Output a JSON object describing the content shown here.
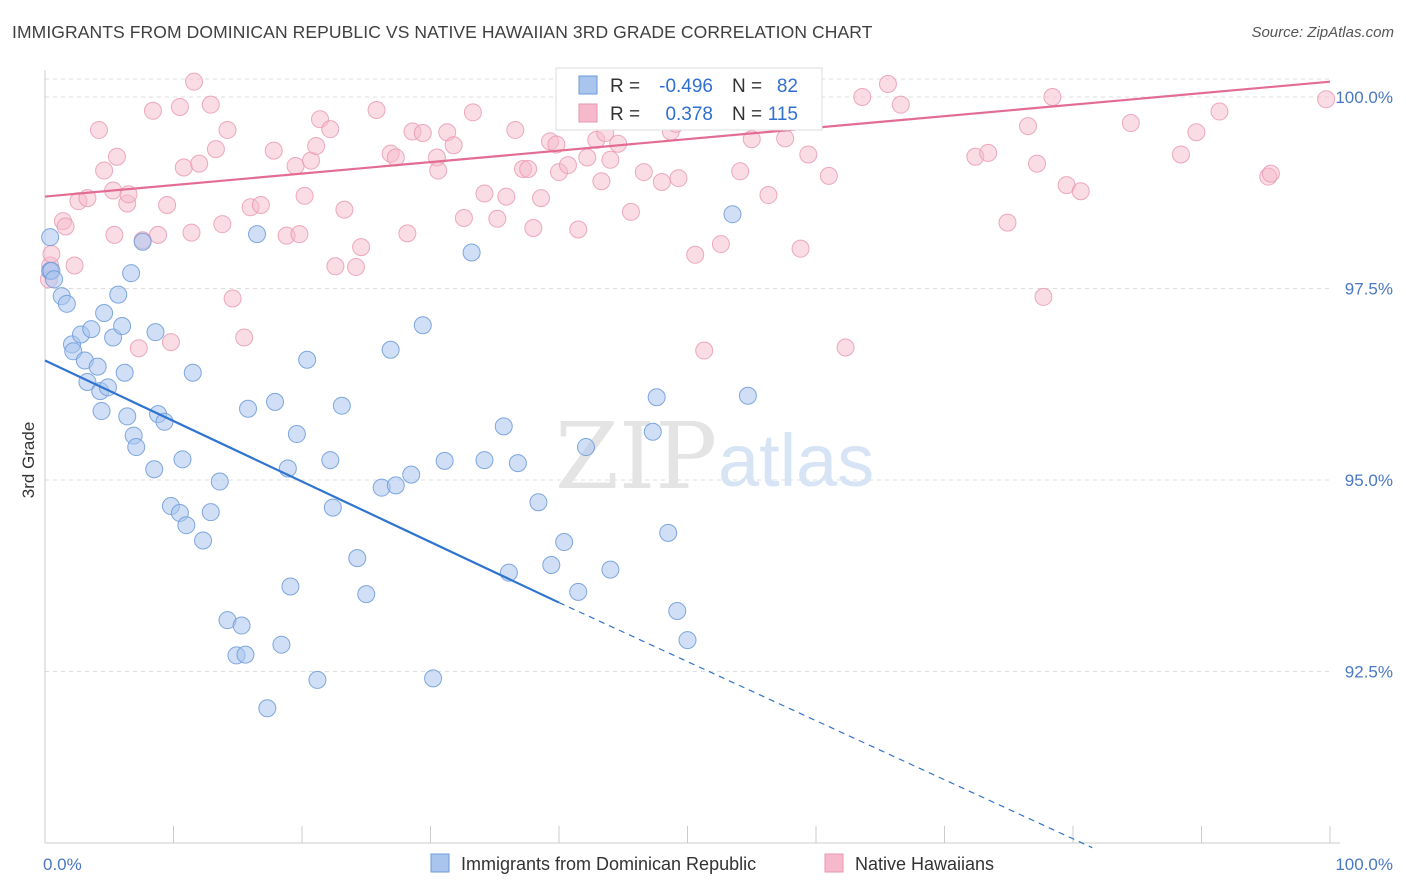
{
  "title": "IMMIGRANTS FROM DOMINICAN REPUBLIC VS NATIVE HAWAIIAN 3RD GRADE CORRELATION CHART",
  "source": "Source: ZipAtlas.com",
  "watermark": {
    "zip": "ZIP",
    "atlas": "atlas"
  },
  "legend": {
    "r_label": "R =",
    "n_label": "N =",
    "series": [
      {
        "r": "-0.496",
        "n": "82"
      },
      {
        "r": "0.378",
        "n": "115"
      }
    ]
  },
  "bottom_legend": [
    "Immigrants from Dominican Republic",
    "Native Hawaiians"
  ],
  "colors": {
    "blue_fill": "#a9c5ee",
    "blue_stroke": "#6b9ad8",
    "blue_line": "#2f74d0",
    "pink_fill": "#f6b9cb",
    "pink_stroke": "#e896b0",
    "pink_line": "#e36c93",
    "grid": "#dddddd",
    "tick_label": "#4a78c2"
  },
  "chart_data": {
    "type": "scatter",
    "title": "IMMIGRANTS FROM DOMINICAN REPUBLIC VS NATIVE HAWAIIAN 3RD GRADE CORRELATION CHART",
    "xlabel": "",
    "ylabel": "3rd Grade",
    "xlim": [
      0,
      100
    ],
    "ylim": [
      90.5,
      100.5
    ],
    "x_tick_labels": [
      {
        "value": 0,
        "label": "0.0%"
      },
      {
        "value": 100,
        "label": "100.0%"
      }
    ],
    "y_ticks": [
      {
        "value": 92.5,
        "label": "92.5%"
      },
      {
        "value": 95.0,
        "label": "95.0%"
      },
      {
        "value": 97.5,
        "label": "97.5%"
      },
      {
        "value": 100.0,
        "label": "100.0%"
      }
    ],
    "grid": true,
    "legend_position": "top-center",
    "series": [
      {
        "name": "Immigrants from Dominican Republic",
        "color": "#a9c5ee",
        "r": -0.496,
        "n": 82,
        "trend": {
          "x0": 0,
          "y0": 96.56,
          "x1": 40,
          "y1": 93.4,
          "dashed_to_x": 81.5,
          "dashed_y1": 90.2
        },
        "points": [
          [
            0.4,
            98.17
          ],
          [
            0.4,
            97.73
          ],
          [
            0.5,
            97.73
          ],
          [
            0.7,
            97.62
          ],
          [
            1.3,
            97.4
          ],
          [
            1.7,
            97.3
          ],
          [
            2.1,
            96.77
          ],
          [
            2.2,
            96.68
          ],
          [
            2.8,
            96.9
          ],
          [
            3.1,
            96.56
          ],
          [
            3.3,
            96.28
          ],
          [
            3.6,
            96.97
          ],
          [
            4.1,
            96.48
          ],
          [
            4.3,
            96.16
          ],
          [
            4.4,
            95.9
          ],
          [
            4.6,
            97.18
          ],
          [
            4.9,
            96.21
          ],
          [
            5.3,
            96.86
          ],
          [
            5.7,
            97.42
          ],
          [
            6,
            97.01
          ],
          [
            6.2,
            96.4
          ],
          [
            6.4,
            95.83
          ],
          [
            6.7,
            97.7
          ],
          [
            6.9,
            95.58
          ],
          [
            7.1,
            95.43
          ],
          [
            7.6,
            98.11
          ],
          [
            8.5,
            95.14
          ],
          [
            8.6,
            96.93
          ],
          [
            8.8,
            95.86
          ],
          [
            9.3,
            95.76
          ],
          [
            9.8,
            94.66
          ],
          [
            10.5,
            94.57
          ],
          [
            10.7,
            95.27
          ],
          [
            11,
            94.41
          ],
          [
            11.5,
            96.4
          ],
          [
            12.3,
            94.21
          ],
          [
            12.9,
            94.58
          ],
          [
            13.6,
            94.98
          ],
          [
            14.2,
            93.17
          ],
          [
            14.9,
            92.71
          ],
          [
            15.3,
            93.1
          ],
          [
            15.6,
            92.72
          ],
          [
            15.8,
            95.93
          ],
          [
            16.5,
            98.21
          ],
          [
            17.3,
            92.02
          ],
          [
            17.9,
            96.02
          ],
          [
            18.4,
            92.85
          ],
          [
            18.9,
            95.15
          ],
          [
            19.1,
            93.61
          ],
          [
            19.6,
            95.6
          ],
          [
            20.4,
            96.57
          ],
          [
            21.2,
            92.39
          ],
          [
            22.2,
            95.26
          ],
          [
            22.4,
            94.64
          ],
          [
            23.1,
            95.97
          ],
          [
            24.3,
            93.98
          ],
          [
            25,
            93.51
          ],
          [
            26.2,
            94.9
          ],
          [
            26.9,
            96.7
          ],
          [
            27.3,
            94.93
          ],
          [
            28.5,
            95.07
          ],
          [
            29.4,
            97.02
          ],
          [
            30.2,
            92.41
          ],
          [
            31.1,
            95.25
          ],
          [
            33.2,
            97.97
          ],
          [
            34.2,
            95.26
          ],
          [
            35.7,
            95.7
          ],
          [
            36.1,
            93.79
          ],
          [
            36.8,
            95.22
          ],
          [
            38.4,
            94.71
          ],
          [
            39.4,
            93.89
          ],
          [
            40.4,
            94.19
          ],
          [
            41.5,
            93.54
          ],
          [
            42.1,
            95.43
          ],
          [
            44,
            93.83
          ],
          [
            47.3,
            95.63
          ],
          [
            47.6,
            96.08
          ],
          [
            48.5,
            94.31
          ],
          [
            49.2,
            93.29
          ],
          [
            50,
            92.91
          ],
          [
            53.5,
            98.47
          ],
          [
            54.7,
            96.1
          ]
        ]
      },
      {
        "name": "Native Hawaiians",
        "color": "#f6b9cb",
        "r": 0.378,
        "n": 115,
        "trend": {
          "x0": 0,
          "y0": 98.7,
          "x1": 100,
          "y1": 100.2
        },
        "points": [
          [
            0.3,
            97.62
          ],
          [
            0.4,
            97.8
          ],
          [
            0.5,
            97.95
          ],
          [
            1.4,
            98.38
          ],
          [
            1.6,
            98.31
          ],
          [
            2.3,
            97.8
          ],
          [
            2.6,
            98.64
          ],
          [
            3.3,
            98.68
          ],
          [
            4.2,
            99.57
          ],
          [
            4.6,
            99.04
          ],
          [
            5.3,
            98.78
          ],
          [
            5.4,
            98.2
          ],
          [
            5.6,
            99.22
          ],
          [
            6.4,
            98.61
          ],
          [
            6.5,
            98.73
          ],
          [
            7.3,
            96.72
          ],
          [
            7.6,
            98.13
          ],
          [
            8.4,
            99.82
          ],
          [
            8.8,
            98.2
          ],
          [
            9.5,
            98.59
          ],
          [
            9.8,
            96.8
          ],
          [
            10.5,
            99.87
          ],
          [
            10.8,
            99.08
          ],
          [
            11.4,
            98.23
          ],
          [
            11.6,
            100.2
          ],
          [
            12,
            99.13
          ],
          [
            12.9,
            99.9
          ],
          [
            13.3,
            99.32
          ],
          [
            13.8,
            98.34
          ],
          [
            14.2,
            99.57
          ],
          [
            14.6,
            97.37
          ],
          [
            15.5,
            96.86
          ],
          [
            16,
            98.56
          ],
          [
            16.8,
            98.59
          ],
          [
            17.8,
            99.3
          ],
          [
            18.8,
            98.19
          ],
          [
            19.5,
            99.1
          ],
          [
            19.8,
            98.21
          ],
          [
            20.2,
            98.71
          ],
          [
            20.7,
            99.17
          ],
          [
            21.1,
            99.36
          ],
          [
            21.4,
            99.71
          ],
          [
            22.2,
            99.58
          ],
          [
            22.6,
            97.79
          ],
          [
            23.3,
            98.53
          ],
          [
            24.2,
            97.78
          ],
          [
            24.6,
            98.04
          ],
          [
            25.8,
            99.83
          ],
          [
            26.9,
            99.26
          ],
          [
            27.3,
            99.21
          ],
          [
            28.2,
            98.22
          ],
          [
            28.6,
            99.55
          ],
          [
            29.4,
            99.53
          ],
          [
            30.5,
            99.21
          ],
          [
            30.6,
            99.04
          ],
          [
            31.3,
            99.54
          ],
          [
            31.8,
            99.37
          ],
          [
            32.6,
            98.42
          ],
          [
            33.3,
            99.8
          ],
          [
            34.2,
            98.74
          ],
          [
            35.2,
            98.41
          ],
          [
            35.9,
            98.7
          ],
          [
            36.6,
            99.57
          ],
          [
            37.2,
            99.06
          ],
          [
            37.6,
            99.06
          ],
          [
            38,
            98.29
          ],
          [
            38.6,
            98.68
          ],
          [
            39.3,
            99.42
          ],
          [
            39.8,
            99.38
          ],
          [
            40,
            99.02
          ],
          [
            40.7,
            99.11
          ],
          [
            41.5,
            98.27
          ],
          [
            42.2,
            99.21
          ],
          [
            42.9,
            99.44
          ],
          [
            43.3,
            98.9
          ],
          [
            43.6,
            99.53
          ],
          [
            44,
            99.18
          ],
          [
            44.6,
            99.39
          ],
          [
            45.6,
            98.5
          ],
          [
            46.6,
            99.02
          ],
          [
            48,
            98.89
          ],
          [
            48.7,
            99.55
          ],
          [
            49.1,
            99.65
          ],
          [
            49.3,
            98.94
          ],
          [
            50.6,
            97.94
          ],
          [
            51.3,
            96.69
          ],
          [
            52.6,
            98.08
          ],
          [
            54.1,
            99.03
          ],
          [
            55,
            99.45
          ],
          [
            56.3,
            98.72
          ],
          [
            57.6,
            99.46
          ],
          [
            58.8,
            98.02
          ],
          [
            59.4,
            99.25
          ],
          [
            61,
            98.97
          ],
          [
            62.3,
            96.73
          ],
          [
            63.6,
            100.0
          ],
          [
            66.6,
            99.9
          ],
          [
            72.4,
            99.22
          ],
          [
            73.4,
            99.27
          ],
          [
            74.9,
            98.36
          ],
          [
            76.5,
            99.62
          ],
          [
            77.2,
            99.13
          ],
          [
            77.7,
            97.39
          ],
          [
            79.5,
            98.85
          ],
          [
            80.6,
            98.77
          ],
          [
            84.5,
            99.66
          ],
          [
            88.4,
            99.25
          ],
          [
            89.6,
            99.54
          ],
          [
            91.4,
            99.81
          ],
          [
            95.2,
            98.96
          ],
          [
            95.4,
            99.0
          ],
          [
            99.7,
            99.97
          ],
          [
            58.5,
            100.18
          ],
          [
            65.6,
            100.17
          ],
          [
            78.4,
            100.0
          ]
        ]
      }
    ]
  }
}
